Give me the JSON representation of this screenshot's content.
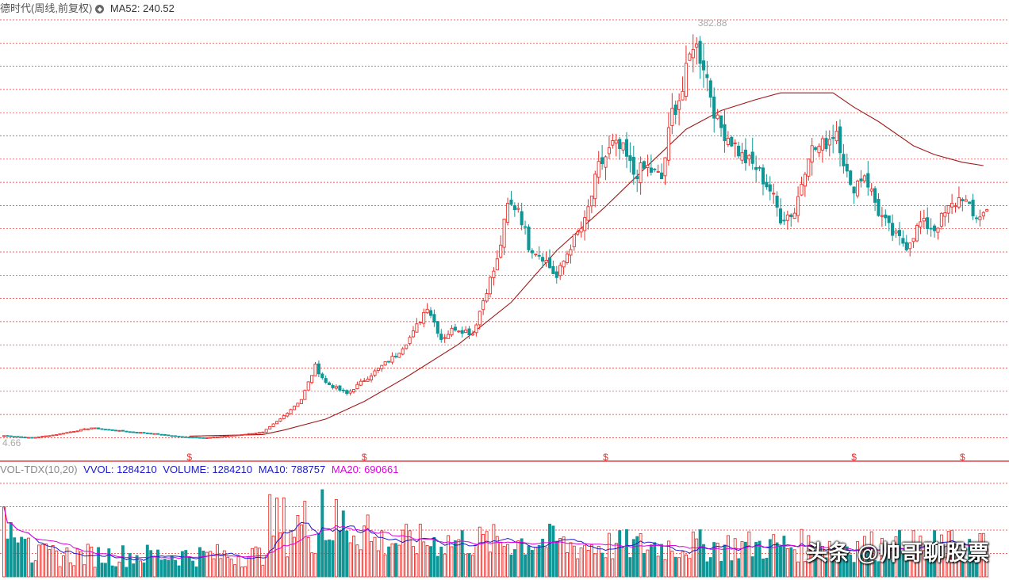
{
  "header": {
    "title": "德时代(周线,前复权)",
    "ma_label": "MA52:",
    "ma_value": "240.52"
  },
  "volume_header": {
    "name": "VOL-TDX(10,20)",
    "vvol": "VVOL: 1284210",
    "volume": "VOLUME: 1284210",
    "ma10": "MA10: 788757",
    "ma20": "MA20: 690661"
  },
  "watermark": "头条 @帅哥聊股票",
  "colors": {
    "up": "#e8302c",
    "down": "#0e9696",
    "ma52": "#a01818",
    "vol_ma10": "#1a1acc",
    "vol_ma20": "#e000e0",
    "grid": "#e8302c"
  },
  "chart_data": {
    "type": "candlestick",
    "title": "德时代(周线,前复权)",
    "high_label": "382.88",
    "low_label": "4.66",
    "price_range": [
      4.66,
      382.88
    ],
    "dividend_markers": [
      53,
      103,
      172,
      243,
      274
    ],
    "ma52_path": [
      [
        53,
        6.5
      ],
      [
        74,
        8
      ],
      [
        80,
        12
      ],
      [
        92,
        22
      ],
      [
        103,
        38
      ],
      [
        115,
        60
      ],
      [
        130,
        90
      ],
      [
        145,
        128
      ],
      [
        158,
        175
      ],
      [
        172,
        215
      ],
      [
        185,
        255
      ],
      [
        195,
        285
      ],
      [
        205,
        302
      ],
      [
        215,
        312
      ],
      [
        222,
        318
      ],
      [
        229,
        318
      ],
      [
        237,
        318
      ],
      [
        243,
        305
      ],
      [
        250,
        292
      ],
      [
        260,
        270
      ],
      [
        266,
        262
      ],
      [
        274,
        255
      ],
      [
        280,
        252
      ]
    ],
    "price_anchors": [
      [
        0,
        7
      ],
      [
        8,
        5
      ],
      [
        15,
        8
      ],
      [
        25,
        14
      ],
      [
        34,
        11
      ],
      [
        42,
        9
      ],
      [
        50,
        6
      ],
      [
        58,
        5
      ],
      [
        65,
        7
      ],
      [
        74,
        10
      ],
      [
        79,
        22
      ],
      [
        85,
        40
      ],
      [
        89,
        70
      ],
      [
        92,
        55
      ],
      [
        98,
        45
      ],
      [
        104,
        60
      ],
      [
        112,
        80
      ],
      [
        117,
        100
      ],
      [
        121,
        125
      ],
      [
        125,
        95
      ],
      [
        129,
        105
      ],
      [
        134,
        100
      ],
      [
        138,
        140
      ],
      [
        141,
        165
      ],
      [
        144,
        215
      ],
      [
        147,
        215
      ],
      [
        150,
        180
      ],
      [
        154,
        170
      ],
      [
        158,
        150
      ],
      [
        162,
        180
      ],
      [
        166,
        200
      ],
      [
        170,
        250
      ],
      [
        174,
        270
      ],
      [
        177,
        265
      ],
      [
        180,
        245
      ],
      [
        184,
        250
      ],
      [
        188,
        240
      ],
      [
        191,
        300
      ],
      [
        194,
        320
      ],
      [
        197,
        365
      ],
      [
        200,
        345
      ],
      [
        204,
        290
      ],
      [
        208,
        275
      ],
      [
        211,
        260
      ],
      [
        215,
        250
      ],
      [
        219,
        230
      ],
      [
        222,
        205
      ],
      [
        226,
        210
      ],
      [
        230,
        265
      ],
      [
        234,
        270
      ],
      [
        238,
        285
      ],
      [
        242,
        230
      ],
      [
        246,
        245
      ],
      [
        250,
        210
      ],
      [
        254,
        190
      ],
      [
        258,
        180
      ],
      [
        262,
        200
      ],
      [
        266,
        195
      ],
      [
        270,
        212
      ],
      [
        274,
        225
      ],
      [
        277,
        205
      ],
      [
        281,
        210
      ]
    ],
    "series": [
      {
        "name": "VVOL",
        "values": [
          1284210
        ]
      },
      {
        "name": "MA10",
        "values": [
          788757
        ]
      },
      {
        "name": "MA20",
        "values": [
          690661
        ]
      }
    ]
  }
}
